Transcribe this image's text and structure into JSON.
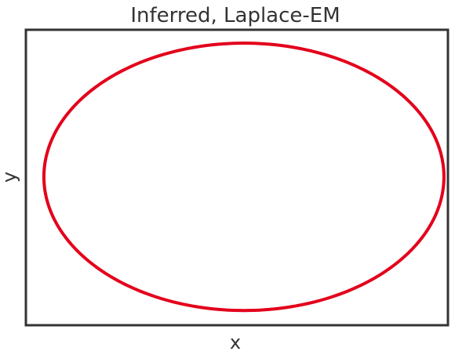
{
  "chart_data": {
    "type": "line",
    "title": "Inferred, Laplace-EM",
    "xlabel": "x",
    "ylabel": "y",
    "ticks": "none",
    "grid": false,
    "series": [
      {
        "shape": "ellipse",
        "center": [
          0,
          0
        ],
        "semi_axis_x": 1.0,
        "semi_axis_y": 1.0,
        "color": "#e3001b"
      }
    ],
    "xlim": [
      -1.09,
      1.02
    ],
    "ylim": [
      -1.11,
      1.1
    ]
  },
  "colors": {
    "frame": "#333333",
    "trajectory": "#e3001b",
    "background": "#ffffff"
  }
}
